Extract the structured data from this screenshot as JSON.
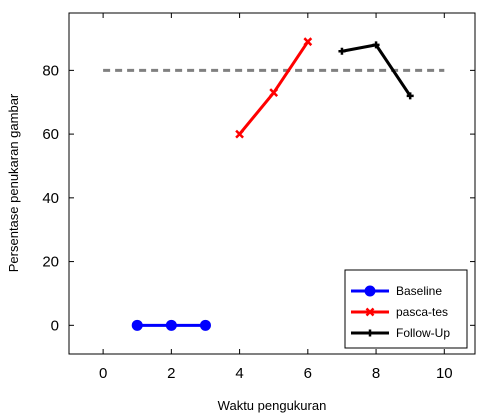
{
  "chart_data": {
    "type": "line",
    "title": "",
    "xlabel": "Waktu pengukuran",
    "ylabel": "Persentase penukaran gambar",
    "xlim": [
      -1,
      10.9
    ],
    "ylim": [
      -9,
      98
    ],
    "xticks": [
      0,
      2,
      4,
      6,
      8,
      10
    ],
    "yticks": [
      0,
      20,
      40,
      60,
      80
    ],
    "grid": false,
    "legend_position": "bottom-right",
    "series": [
      {
        "name": "Baseline",
        "color": "#0000ff",
        "marker": "circle",
        "x": [
          1,
          2,
          3
        ],
        "y": [
          0,
          0,
          0
        ]
      },
      {
        "name": "pasca-tes",
        "color": "#ff0000",
        "marker": "x",
        "x": [
          4,
          5,
          6
        ],
        "y": [
          60,
          73,
          89
        ]
      },
      {
        "name": "Follow-Up",
        "color": "#000000",
        "marker": "plus",
        "x": [
          7,
          8,
          9
        ],
        "y": [
          86,
          88,
          72
        ]
      }
    ],
    "reference_line": {
      "y": 80,
      "color": "#808080",
      "style": "dashed"
    }
  }
}
